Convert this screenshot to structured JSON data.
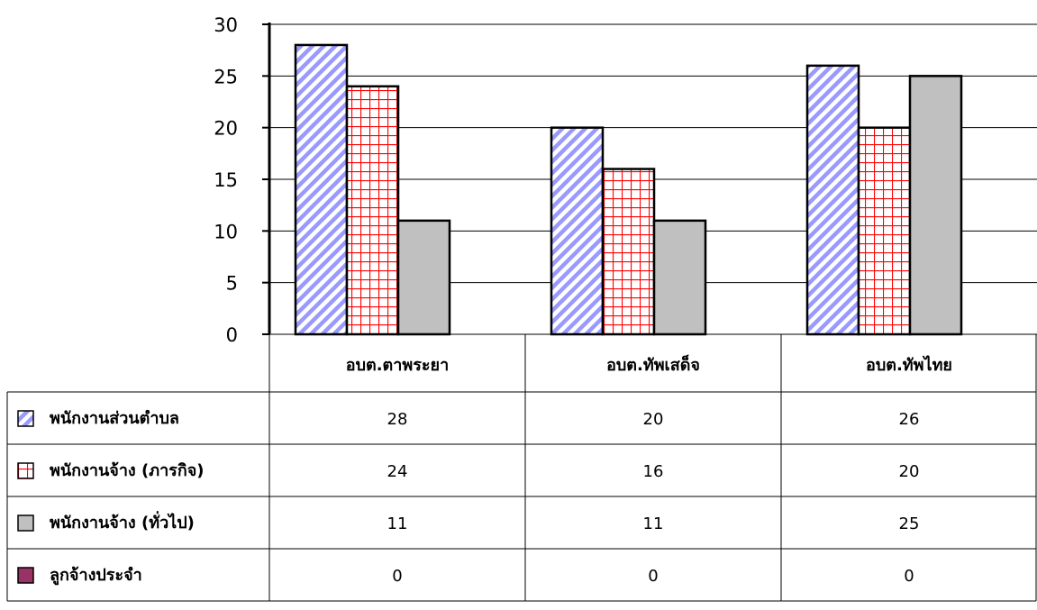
{
  "chart_data": {
    "type": "bar",
    "categories": [
      "อบต.ตาพระยา",
      "อบต.ทัพเสด็จ",
      "อบต.ทัพไทย"
    ],
    "series": [
      {
        "name": "พนักงานส่วนตำบล",
        "values": [
          28,
          20,
          26
        ],
        "pattern": "diagonal-stripes",
        "color": "#9999ff"
      },
      {
        "name": "พนักงานจ้าง (ภารกิจ)",
        "values": [
          24,
          16,
          20
        ],
        "pattern": "grid",
        "color": "#ff0000"
      },
      {
        "name": "พนักงานจ้าง (ทั่วไป)",
        "values": [
          11,
          11,
          25
        ],
        "pattern": "solid",
        "color": "#c0c0c0"
      },
      {
        "name": "ลูกจ้างประจำ",
        "values": [
          0,
          0,
          0
        ],
        "pattern": "solid",
        "color": "#993366"
      }
    ],
    "ylim": [
      0,
      30
    ],
    "yticks": [
      0,
      5,
      10,
      15,
      20,
      25,
      30
    ],
    "grid": true,
    "legend": "data-table",
    "title": "",
    "xlabel": "",
    "ylabel": ""
  }
}
